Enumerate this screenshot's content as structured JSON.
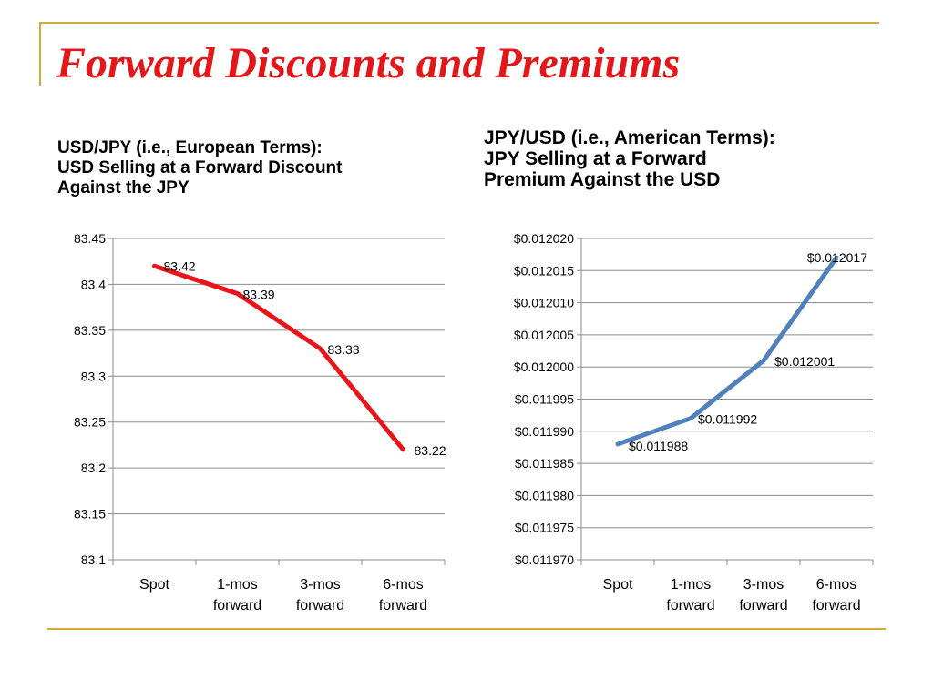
{
  "slide": {
    "title": "Forward Discounts and Premiums",
    "frame_color": "#d4a83a",
    "title_color": "#e3161a"
  },
  "left_chart": {
    "heading_lines": [
      "USD/JPY (i.e., European Terms):",
      "USD Selling at a Forward Discount",
      "Against the JPY"
    ]
  },
  "right_chart": {
    "heading_lines": [
      "JPY/USD (i.e., American Terms):",
      "JPY Selling at a Forward",
      "Premium Against the USD"
    ]
  },
  "chart_data": [
    {
      "type": "line",
      "categories": [
        [
          "Spot"
        ],
        [
          "1-mos",
          "forward"
        ],
        [
          "3-mos",
          "forward"
        ],
        [
          "6-mos",
          "forward"
        ]
      ],
      "values": [
        83.42,
        83.39,
        83.33,
        83.22
      ],
      "data_labels": [
        "83.42",
        "83.39",
        "83.33",
        "83.22"
      ],
      "ylim": [
        83.1,
        83.45
      ],
      "yticks": [
        "83.1",
        "83.15",
        "83.2",
        "83.25",
        "83.3",
        "83.35",
        "83.4",
        "83.45"
      ],
      "color": "#e8161b",
      "grid": true,
      "legend": "none"
    },
    {
      "type": "line",
      "categories": [
        [
          "Spot"
        ],
        [
          "1-mos",
          "forward"
        ],
        [
          "3-mos",
          "forward"
        ],
        [
          "6-mos",
          "forward"
        ]
      ],
      "values": [
        0.011988,
        0.011992,
        0.012001,
        0.012017
      ],
      "data_labels": [
        "$0.011988",
        "$0.011992",
        "$0.012001",
        "$0.012017"
      ],
      "ylim": [
        0.01197,
        0.01202
      ],
      "yticks": [
        "$0.011970",
        "$0.011975",
        "$0.011980",
        "$0.011985",
        "$0.011990",
        "$0.011995",
        "$0.012000",
        "$0.012005",
        "$0.012010",
        "$0.012015",
        "$0.012020"
      ],
      "color": "#4f81bd",
      "grid": true,
      "legend": "none"
    }
  ]
}
